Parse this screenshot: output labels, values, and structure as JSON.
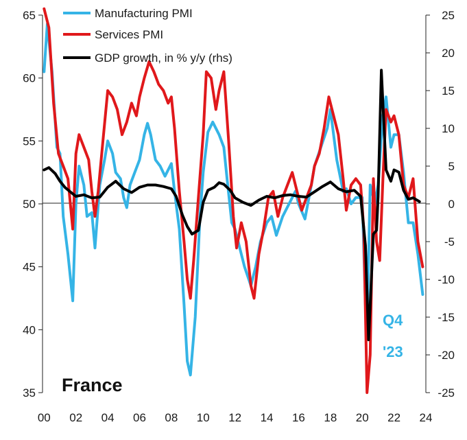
{
  "chart_data": {
    "type": "line",
    "title": "France",
    "annotation_lines": [
      "Q4",
      "'23"
    ],
    "colors": {
      "manufacturing": "#35b4e6",
      "services": "#e0181b",
      "gdp": "#000000",
      "annotation": "#35b4e6"
    },
    "x_ticks": [
      {
        "value": 2000,
        "label": "00"
      },
      {
        "value": 2002,
        "label": "02"
      },
      {
        "value": 2004,
        "label": "04"
      },
      {
        "value": 2006,
        "label": "06"
      },
      {
        "value": 2008,
        "label": "08"
      },
      {
        "value": 2010,
        "label": "10"
      },
      {
        "value": 2012,
        "label": "12"
      },
      {
        "value": 2014,
        "label": "14"
      },
      {
        "value": 2016,
        "label": "16"
      },
      {
        "value": 2018,
        "label": "18"
      },
      {
        "value": 2020,
        "label": "20"
      },
      {
        "value": 2022,
        "label": "22"
      },
      {
        "value": 2024,
        "label": "24"
      }
    ],
    "xlim": [
      1999.9,
      2024.0
    ],
    "y_left": {
      "ylim": [
        35,
        65
      ],
      "ticks": [
        35,
        40,
        45,
        50,
        55,
        60,
        65
      ],
      "baseline": 50
    },
    "y_right": {
      "ylim": [
        -25,
        25
      ],
      "ticks": [
        -25,
        -20,
        -15,
        -10,
        -5,
        0,
        5,
        10,
        15,
        20,
        25
      ]
    },
    "series": [
      {
        "name": "Manufacturing PMI",
        "axis": "left",
        "color_key": "manufacturing",
        "points": [
          [
            2000.0,
            60.5
          ],
          [
            2000.2,
            64.3
          ],
          [
            2000.5,
            60.5
          ],
          [
            2000.8,
            54.5
          ],
          [
            2001.0,
            54.0
          ],
          [
            2001.2,
            49.0
          ],
          [
            2001.5,
            46.0
          ],
          [
            2001.8,
            42.3
          ],
          [
            2002.0,
            50.0
          ],
          [
            2002.2,
            53.0
          ],
          [
            2002.5,
            51.5
          ],
          [
            2002.7,
            49.0
          ],
          [
            2003.0,
            49.3
          ],
          [
            2003.2,
            46.5
          ],
          [
            2003.5,
            51.5
          ],
          [
            2003.8,
            53.5
          ],
          [
            2004.0,
            55.0
          ],
          [
            2004.3,
            54.0
          ],
          [
            2004.5,
            52.5
          ],
          [
            2004.8,
            52.0
          ],
          [
            2005.0,
            50.5
          ],
          [
            2005.2,
            49.7
          ],
          [
            2005.4,
            51.5
          ],
          [
            2005.7,
            52.5
          ],
          [
            2006.0,
            53.5
          ],
          [
            2006.3,
            55.5
          ],
          [
            2006.5,
            56.4
          ],
          [
            2006.7,
            55.5
          ],
          [
            2007.0,
            53.5
          ],
          [
            2007.3,
            53.0
          ],
          [
            2007.6,
            52.2
          ],
          [
            2008.0,
            53.2
          ],
          [
            2008.2,
            51.0
          ],
          [
            2008.5,
            48.0
          ],
          [
            2008.8,
            42.0
          ],
          [
            2009.0,
            37.5
          ],
          [
            2009.2,
            36.4
          ],
          [
            2009.5,
            41.0
          ],
          [
            2009.8,
            49.0
          ],
          [
            2010.0,
            52.5
          ],
          [
            2010.3,
            55.7
          ],
          [
            2010.6,
            56.5
          ],
          [
            2011.0,
            55.5
          ],
          [
            2011.3,
            54.5
          ],
          [
            2011.5,
            52.0
          ],
          [
            2011.8,
            48.5
          ],
          [
            2012.0,
            48.0
          ],
          [
            2012.3,
            46.5
          ],
          [
            2012.6,
            45.0
          ],
          [
            2013.0,
            43.5
          ],
          [
            2013.3,
            45.0
          ],
          [
            2013.6,
            47.0
          ],
          [
            2014.0,
            48.5
          ],
          [
            2014.3,
            49.0
          ],
          [
            2014.6,
            47.5
          ],
          [
            2015.0,
            49.0
          ],
          [
            2015.4,
            50.0
          ],
          [
            2015.8,
            51.0
          ],
          [
            2016.0,
            50.0
          ],
          [
            2016.4,
            48.8
          ],
          [
            2016.8,
            51.5
          ],
          [
            2017.0,
            53.0
          ],
          [
            2017.4,
            54.5
          ],
          [
            2017.8,
            56.0
          ],
          [
            2018.0,
            57.5
          ],
          [
            2018.4,
            53.5
          ],
          [
            2018.8,
            51.0
          ],
          [
            2019.0,
            51.2
          ],
          [
            2019.3,
            50.0
          ],
          [
            2019.6,
            50.5
          ],
          [
            2020.0,
            50.5
          ],
          [
            2020.2,
            42.0
          ],
          [
            2020.3,
            40.0
          ],
          [
            2020.5,
            51.5
          ],
          [
            2020.8,
            50.0
          ],
          [
            2021.0,
            51.5
          ],
          [
            2021.3,
            57.0
          ],
          [
            2021.5,
            58.5
          ],
          [
            2021.8,
            54.5
          ],
          [
            2022.0,
            55.5
          ],
          [
            2022.3,
            55.5
          ],
          [
            2022.6,
            52.5
          ],
          [
            2022.9,
            48.5
          ],
          [
            2023.2,
            48.5
          ],
          [
            2023.5,
            46.0
          ],
          [
            2023.8,
            42.8
          ]
        ]
      },
      {
        "name": "Services PMI",
        "axis": "left",
        "color_key": "services",
        "points": [
          [
            2000.0,
            65.5
          ],
          [
            2000.3,
            64.0
          ],
          [
            2000.6,
            58.0
          ],
          [
            2000.9,
            54.0
          ],
          [
            2001.2,
            53.0
          ],
          [
            2001.5,
            52.0
          ],
          [
            2001.8,
            48.0
          ],
          [
            2002.0,
            54.0
          ],
          [
            2002.2,
            55.5
          ],
          [
            2002.5,
            54.5
          ],
          [
            2002.8,
            53.5
          ],
          [
            2003.0,
            51.0
          ],
          [
            2003.2,
            49.0
          ],
          [
            2003.4,
            51.0
          ],
          [
            2003.7,
            55.0
          ],
          [
            2004.0,
            59.0
          ],
          [
            2004.3,
            58.5
          ],
          [
            2004.6,
            57.5
          ],
          [
            2004.9,
            55.5
          ],
          [
            2005.2,
            56.5
          ],
          [
            2005.5,
            58.0
          ],
          [
            2005.8,
            57.0
          ],
          [
            2006.0,
            58.5
          ],
          [
            2006.3,
            60.0
          ],
          [
            2006.6,
            61.3
          ],
          [
            2006.9,
            60.5
          ],
          [
            2007.2,
            59.5
          ],
          [
            2007.5,
            59.0
          ],
          [
            2007.8,
            58.0
          ],
          [
            2008.0,
            58.5
          ],
          [
            2008.2,
            56.0
          ],
          [
            2008.5,
            51.0
          ],
          [
            2008.8,
            47.0
          ],
          [
            2009.0,
            44.0
          ],
          [
            2009.2,
            42.5
          ],
          [
            2009.4,
            45.5
          ],
          [
            2009.7,
            50.5
          ],
          [
            2010.0,
            55.5
          ],
          [
            2010.2,
            60.5
          ],
          [
            2010.5,
            60.0
          ],
          [
            2010.8,
            57.5
          ],
          [
            2011.0,
            59.0
          ],
          [
            2011.3,
            60.5
          ],
          [
            2011.6,
            55.0
          ],
          [
            2011.9,
            49.0
          ],
          [
            2012.1,
            46.5
          ],
          [
            2012.4,
            48.5
          ],
          [
            2012.7,
            47.0
          ],
          [
            2013.0,
            43.5
          ],
          [
            2013.2,
            42.5
          ],
          [
            2013.5,
            46.0
          ],
          [
            2013.8,
            48.0
          ],
          [
            2014.1,
            50.5
          ],
          [
            2014.4,
            51.0
          ],
          [
            2014.7,
            49.0
          ],
          [
            2015.0,
            50.5
          ],
          [
            2015.3,
            51.5
          ],
          [
            2015.6,
            52.5
          ],
          [
            2015.9,
            51.0
          ],
          [
            2016.2,
            49.5
          ],
          [
            2016.5,
            50.5
          ],
          [
            2016.8,
            51.5
          ],
          [
            2017.0,
            53.0
          ],
          [
            2017.3,
            54.0
          ],
          [
            2017.6,
            56.0
          ],
          [
            2017.9,
            58.5
          ],
          [
            2018.2,
            57.0
          ],
          [
            2018.5,
            55.5
          ],
          [
            2018.8,
            52.0
          ],
          [
            2019.0,
            49.5
          ],
          [
            2019.3,
            51.5
          ],
          [
            2019.6,
            52.0
          ],
          [
            2019.9,
            51.5
          ],
          [
            2020.1,
            48.0
          ],
          [
            2020.3,
            35.0
          ],
          [
            2020.5,
            38.0
          ],
          [
            2020.7,
            52.0
          ],
          [
            2020.9,
            47.0
          ],
          [
            2021.1,
            45.5
          ],
          [
            2021.3,
            52.0
          ],
          [
            2021.5,
            57.5
          ],
          [
            2021.8,
            56.5
          ],
          [
            2022.0,
            57.0
          ],
          [
            2022.3,
            55.5
          ],
          [
            2022.6,
            51.5
          ],
          [
            2022.9,
            50.5
          ],
          [
            2023.2,
            52.0
          ],
          [
            2023.5,
            47.0
          ],
          [
            2023.8,
            45.0
          ]
        ]
      },
      {
        "name": "GDP growth, in % y/y (rhs)",
        "axis": "right",
        "color_key": "gdp",
        "points": [
          [
            2000.0,
            4.5
          ],
          [
            2000.3,
            4.8
          ],
          [
            2000.7,
            4.0
          ],
          [
            2001.0,
            3.0
          ],
          [
            2001.3,
            2.2
          ],
          [
            2001.7,
            1.5
          ],
          [
            2002.0,
            1.0
          ],
          [
            2002.5,
            1.2
          ],
          [
            2003.0,
            0.8
          ],
          [
            2003.5,
            0.9
          ],
          [
            2004.0,
            2.2
          ],
          [
            2004.5,
            3.0
          ],
          [
            2005.0,
            2.0
          ],
          [
            2005.5,
            1.5
          ],
          [
            2006.0,
            2.2
          ],
          [
            2006.5,
            2.5
          ],
          [
            2007.0,
            2.5
          ],
          [
            2007.5,
            2.3
          ],
          [
            2008.0,
            2.0
          ],
          [
            2008.3,
            1.0
          ],
          [
            2008.7,
            -1.5
          ],
          [
            2009.0,
            -3.0
          ],
          [
            2009.3,
            -4.0
          ],
          [
            2009.7,
            -3.5
          ],
          [
            2010.0,
            0.2
          ],
          [
            2010.3,
            1.8
          ],
          [
            2010.7,
            2.2
          ],
          [
            2011.0,
            2.8
          ],
          [
            2011.3,
            2.6
          ],
          [
            2011.7,
            1.8
          ],
          [
            2012.0,
            0.8
          ],
          [
            2012.5,
            0.2
          ],
          [
            2013.0,
            -0.2
          ],
          [
            2013.5,
            0.5
          ],
          [
            2014.0,
            1.0
          ],
          [
            2014.5,
            0.8
          ],
          [
            2015.0,
            1.1
          ],
          [
            2015.5,
            1.2
          ],
          [
            2016.0,
            1.0
          ],
          [
            2016.5,
            0.9
          ],
          [
            2017.0,
            1.6
          ],
          [
            2017.5,
            2.3
          ],
          [
            2018.0,
            2.9
          ],
          [
            2018.5,
            2.0
          ],
          [
            2019.0,
            1.6
          ],
          [
            2019.5,
            1.8
          ],
          [
            2019.9,
            1.0
          ],
          [
            2020.2,
            -5.5
          ],
          [
            2020.4,
            -18.0
          ],
          [
            2020.7,
            -4.0
          ],
          [
            2020.9,
            -3.5
          ],
          [
            2021.0,
            1.0
          ],
          [
            2021.2,
            17.7
          ],
          [
            2021.5,
            4.5
          ],
          [
            2021.8,
            3.0
          ],
          [
            2022.0,
            4.5
          ],
          [
            2022.3,
            4.2
          ],
          [
            2022.6,
            1.8
          ],
          [
            2022.9,
            0.6
          ],
          [
            2023.2,
            0.8
          ],
          [
            2023.6,
            0.3
          ]
        ]
      }
    ]
  }
}
